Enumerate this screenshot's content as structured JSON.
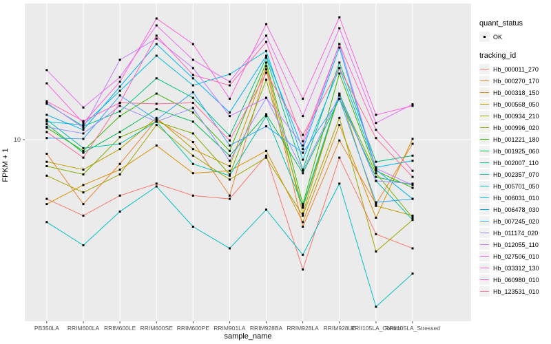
{
  "chart_data": {
    "type": "line",
    "title": "",
    "xlabel": "sample_name",
    "ylabel": "FPKM + 1",
    "x_categories": [
      "PB350LA",
      "RRIM600LA",
      "RRIM600LE",
      "RRIM600SE",
      "RRIM600PE",
      "RRIM901LA",
      "RRIM928BA",
      "RRIM928LA",
      "RRIM928LE",
      "RRII105LA_Control",
      "RRII105LA_Stressed"
    ],
    "y_axis": {
      "scale": "log10",
      "tick_labels": [
        "10"
      ],
      "tick_values": [
        10
      ],
      "range_approx": [
        1.03,
        55
      ]
    },
    "grid": {
      "major_color": "#ffffff",
      "panel_color": "#ebebeb",
      "horizontal_major_at": 10
    },
    "marker": {
      "shape": "square",
      "color": "#000000"
    },
    "legend": {
      "position": "right",
      "quant_status": {
        "title": "quant_status",
        "items": [
          "OK"
        ]
      },
      "tracking_id": {
        "title": "tracking_id"
      }
    },
    "series": [
      {
        "name": "Hb_000011_270",
        "color": "#F8766D",
        "quant_status": "OK",
        "values": [
          4.8,
          3.9,
          5.0,
          5.8,
          5.0,
          4.8,
          8.2,
          2.0,
          8.0,
          3.1,
          2.6
        ]
      },
      {
        "name": "Hb_000270_170",
        "color": "#EA8331",
        "quant_status": "OK",
        "values": [
          8.4,
          4.5,
          7.4,
          12.8,
          9.7,
          5.0,
          23.9,
          3.4,
          9.9,
          4.5,
          9.5
        ]
      },
      {
        "name": "Hb_000318_150",
        "color": "#D89000",
        "quant_status": "OK",
        "values": [
          4.5,
          5.7,
          6.9,
          9.3,
          6.6,
          6.8,
          8.7,
          3.6,
          12.0,
          3.8,
          10.1
        ]
      },
      {
        "name": "Hb_000568_050",
        "color": "#C09B00",
        "quant_status": "OK",
        "values": [
          7.6,
          6.9,
          8.9,
          13.1,
          8.9,
          7.2,
          24.9,
          4.0,
          17.7,
          4.4,
          3.9
        ]
      },
      {
        "name": "Hb_000934_210",
        "color": "#A3A500",
        "quant_status": "OK",
        "values": [
          6.4,
          5.2,
          6.5,
          12.0,
          8.2,
          6.1,
          8.0,
          3.9,
          13.1,
          2.5,
          3.7
        ]
      },
      {
        "name": "Hb_000996_020",
        "color": "#7CAE00",
        "quant_status": "OK",
        "values": [
          7.2,
          6.5,
          10.3,
          12.5,
          10.8,
          6.5,
          21.0,
          4.3,
          17.3,
          6.6,
          3.8
        ]
      },
      {
        "name": "Hb_001221_180",
        "color": "#39B600",
        "quant_status": "OK",
        "values": [
          11.6,
          8.7,
          13.4,
          17.7,
          14.0,
          8.7,
          26.0,
          4.5,
          22.7,
          6.8,
          5.5
        ]
      },
      {
        "name": "Hb_001925_060",
        "color": "#00BB4E",
        "quant_status": "OK",
        "values": [
          12.1,
          8.5,
          11.0,
          14.6,
          12.5,
          8.2,
          13.7,
          6.6,
          16.6,
          6.3,
          5.7
        ]
      },
      {
        "name": "Hb_002007_110",
        "color": "#00BF7D",
        "quant_status": "OK",
        "values": [
          15.6,
          11.8,
          14.2,
          21.4,
          16.8,
          10.5,
          27.6,
          6.9,
          26.0,
          7.6,
          8.2
        ]
      },
      {
        "name": "Hb_002357_070",
        "color": "#00C1A3",
        "quant_status": "OK",
        "values": [
          12.8,
          9.0,
          9.5,
          12.5,
          7.4,
          6.4,
          13.4,
          4.4,
          17.7,
          6.0,
          3.7
        ]
      },
      {
        "name": "Hb_005701_050",
        "color": "#00BFC4",
        "quant_status": "OK",
        "values": [
          3.6,
          2.7,
          4.1,
          5.6,
          3.4,
          2.6,
          4.2,
          2.4,
          5.8,
          1.26,
          1.9
        ]
      },
      {
        "name": "Hb_006031_010",
        "color": "#00BAE0",
        "quant_status": "OK",
        "values": [
          12.5,
          12.0,
          18.3,
          28.3,
          19.6,
          22.5,
          30.0,
          7.8,
          24.3,
          7.1,
          7.7
        ]
      },
      {
        "name": "Hb_006478_030",
        "color": "#00B0F6",
        "quant_status": "OK",
        "values": [
          13.6,
          11.3,
          19.3,
          32.7,
          21.4,
          14.0,
          28.3,
          8.9,
          31.3,
          6.9,
          4.8
        ]
      },
      {
        "name": "Hb_007245_020",
        "color": "#35A2FF",
        "quant_status": "OK",
        "values": [
          10.2,
          10.1,
          17.3,
          12.8,
          18.0,
          9.3,
          11.8,
          8.5,
          16.6,
          4.6,
          4.8
        ]
      },
      {
        "name": "Hb_011174_020",
        "color": "#9590FF",
        "quant_status": "OK",
        "values": [
          11.7,
          10.8,
          15.2,
          12.5,
          14.8,
          7.7,
          16.8,
          6.8,
          17.3,
          6.0,
          5.8
        ]
      },
      {
        "name": "Hb_012055_110",
        "color": "#C77CFF",
        "quant_status": "OK",
        "values": [
          15.8,
          11.6,
          26.9,
          35.0,
          24.3,
          13.4,
          16.8,
          9.3,
          32.7,
          7.0,
          5.7
        ]
      },
      {
        "name": "Hb_027506_010",
        "color": "#E76BF3",
        "quant_status": "OK",
        "values": [
          23.7,
          14.9,
          21.7,
          41.2,
          26.9,
          20.5,
          36.3,
          13.4,
          39.8,
          12.3,
          15.5
        ]
      },
      {
        "name": "Hb_033312_130",
        "color": "#FA62DB",
        "quant_status": "OK",
        "values": [
          20.1,
          12.3,
          20.5,
          44.9,
          32.7,
          16.6,
          41.9,
          16.6,
          45.6,
          13.6,
          15.2
        ]
      },
      {
        "name": "Hb_060980_010",
        "color": "#FF62BC",
        "quant_status": "OK",
        "values": [
          16.1,
          12.6,
          15.8,
          36.3,
          22.3,
          19.6,
          33.6,
          9.8,
          32.7,
          11.3,
          6.8
        ]
      },
      {
        "name": "Hb_123531_010",
        "color": "#FF6A98",
        "quant_status": "OK",
        "values": [
          11.0,
          8.0,
          15.8,
          15.6,
          15.8,
          9.9,
          22.9,
          10.6,
          24.3,
          10.2,
          6.3
        ]
      }
    ]
  }
}
